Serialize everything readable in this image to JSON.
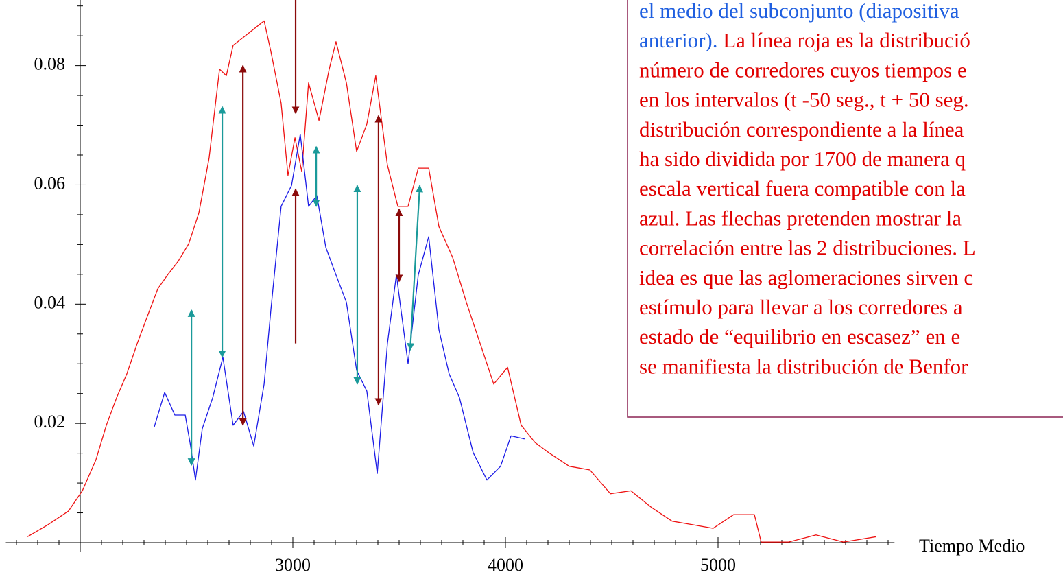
{
  "chart_data": {
    "type": "line",
    "xlabel": "Tiempo Medio",
    "xlim": [
      1650,
      5830
    ],
    "ylim": [
      0,
      0.091
    ],
    "axes_origin": [
      2000,
      0
    ],
    "xticks": [
      3000,
      4000,
      5000
    ],
    "x_minor_ticks": [
      1700,
      1800,
      1900,
      2000,
      2100,
      2200,
      2300,
      2400,
      2500,
      2600,
      2700,
      2800,
      2900,
      3100,
      3200,
      3300,
      3400,
      3500,
      3600,
      3700,
      3800,
      3900,
      4100,
      4200,
      4300,
      4400,
      4500,
      4600,
      4700,
      4800,
      4900,
      5100,
      5200,
      5300,
      5400,
      5500,
      5600,
      5700,
      5800
    ],
    "yticks": [
      0.02,
      0.04,
      0.06,
      0.08
    ],
    "y_minor_ticks": [
      0.005,
      0.01,
      0.015,
      0.025,
      0.03,
      0.035,
      0.045,
      0.05,
      0.055,
      0.065,
      0.07,
      0.075,
      0.085,
      0.09
    ],
    "series": [
      {
        "color": "#ee1111",
        "x": [
          1752,
          1848,
          1945,
          2010,
          2074,
          2123,
          2171,
          2219,
          2268,
          2316,
          2365,
          2413,
          2461,
          2510,
          2558,
          2606,
          2655,
          2687,
          2719,
          2784,
          2865,
          2897,
          2945,
          2977,
          3010,
          3042,
          3074,
          3123,
          3171,
          3203,
          3252,
          3300,
          3348,
          3390,
          3445,
          3494,
          3542,
          3590,
          3639,
          3687,
          3752,
          3816,
          3881,
          3945,
          4010,
          4074,
          4139,
          4203,
          4300,
          4397,
          4494,
          4590,
          4687,
          4784,
          4881,
          4977,
          5074,
          5171,
          5203,
          5332,
          5461,
          5590,
          5745
        ],
        "values": [
          0.001,
          0.003,
          0.0053,
          0.0087,
          0.0139,
          0.0197,
          0.0243,
          0.0283,
          0.0334,
          0.038,
          0.0426,
          0.045,
          0.0472,
          0.0501,
          0.0553,
          0.0645,
          0.0794,
          0.0783,
          0.0834,
          0.0852,
          0.0875,
          0.0823,
          0.0737,
          0.0616,
          0.0679,
          0.0622,
          0.0771,
          0.0708,
          0.0794,
          0.084,
          0.0771,
          0.0656,
          0.0702,
          0.0783,
          0.0633,
          0.0564,
          0.0564,
          0.0628,
          0.0628,
          0.053,
          0.0478,
          0.0403,
          0.0334,
          0.0266,
          0.0294,
          0.0197,
          0.0168,
          0.0151,
          0.0128,
          0.0122,
          0.0082,
          0.0087,
          0.0059,
          0.0036,
          0.003,
          0.0024,
          0.0047,
          0.0047,
          0.0001,
          0.0001,
          0.0013,
          0.0001,
          0.001
        ]
      },
      {
        "color": "#1a1ae6",
        "x": [
          2348,
          2397,
          2445,
          2494,
          2519,
          2542,
          2574,
          2623,
          2671,
          2719,
          2768,
          2816,
          2865,
          2897,
          2945,
          2994,
          3035,
          3074,
          3113,
          3155,
          3203,
          3252,
          3300,
          3348,
          3397,
          3445,
          3487,
          3542,
          3590,
          3639,
          3687,
          3735,
          3784,
          3848,
          3913,
          3977,
          4026,
          4090
        ],
        "values": [
          0.0194,
          0.0252,
          0.0214,
          0.0214,
          0.0162,
          0.0105,
          0.0191,
          0.0243,
          0.0311,
          0.0197,
          0.022,
          0.0162,
          0.0266,
          0.0392,
          0.0564,
          0.0599,
          0.0685,
          0.0564,
          0.0582,
          0.0495,
          0.0449,
          0.0403,
          0.0289,
          0.0254,
          0.0116,
          0.0334,
          0.0449,
          0.03,
          0.0449,
          0.0513,
          0.0357,
          0.0283,
          0.0243,
          0.0151,
          0.0105,
          0.0128,
          0.0179,
          0.0174
        ]
      }
    ],
    "arrows": [
      {
        "x1": 2523,
        "y1": 0.039,
        "x2": 2523,
        "y2": 0.013,
        "color": "#1a9a9a",
        "heads": "both"
      },
      {
        "x1": 2668,
        "y1": 0.0731,
        "x2": 2668,
        "y2": 0.0311,
        "color": "#1a9a9a",
        "heads": "both"
      },
      {
        "x1": 2765,
        "y1": 0.08,
        "x2": 2765,
        "y2": 0.0197,
        "color": "#8b0a0a",
        "heads": "both"
      },
      {
        "x1": 3013,
        "y1": 0.091,
        "x2": 3013,
        "y2": 0.072,
        "color": "#8b0a0a",
        "heads": "end"
      },
      {
        "x1": 3013,
        "y1": 0.0334,
        "x2": 3013,
        "y2": 0.0593,
        "color": "#8b0a0a",
        "heads": "end"
      },
      {
        "x1": 3110,
        "y1": 0.0664,
        "x2": 3110,
        "y2": 0.0564,
        "color": "#1a9a9a",
        "heads": "both"
      },
      {
        "x1": 3303,
        "y1": 0.0599,
        "x2": 3303,
        "y2": 0.0266,
        "color": "#1a9a9a",
        "heads": "both"
      },
      {
        "x1": 3403,
        "y1": 0.0716,
        "x2": 3403,
        "y2": 0.0231,
        "color": "#8b0a0a",
        "heads": "both"
      },
      {
        "x1": 3500,
        "y1": 0.0559,
        "x2": 3500,
        "y2": 0.0438,
        "color": "#8b0a0a",
        "heads": "both"
      },
      {
        "x1": 3552,
        "y1": 0.0323,
        "x2": 3597,
        "y2": 0.0599,
        "color": "#1a9a9a",
        "heads": "both"
      }
    ]
  },
  "text_box": {
    "border_color": "#8b2252",
    "lines": [
      [
        {
          "text": "el medio del subconjunto (diapositiva",
          "color": "#1f5fe0"
        }
      ],
      [
        {
          "text": "anterior).",
          "color": "#1f5fe0"
        },
        {
          "text": " La línea roja es la distribució",
          "color": "#e00000"
        }
      ],
      [
        {
          "text": "número de corredores cuyos tiempos e",
          "color": "#e00000"
        }
      ],
      [
        {
          "text": "en los intervalos (t -50 seg., t + 50 seg.",
          "color": "#e00000"
        }
      ],
      [
        {
          "text": "distribución correspondiente a la línea",
          "color": "#e00000"
        }
      ],
      [
        {
          "text": "ha sido dividida por 1700 de manera q",
          "color": "#e00000"
        }
      ],
      [
        {
          "text": "escala vertical fuera compatible con la",
          "color": "#e00000"
        }
      ],
      [
        {
          "text": "azul. Las flechas pretenden mostrar la",
          "color": "#e00000"
        }
      ],
      [
        {
          "text": "correlación entre las 2 distribuciones. L",
          "color": "#e00000"
        }
      ],
      [
        {
          "text": "idea es que las aglomeraciones sirven c",
          "color": "#e00000"
        }
      ],
      [
        {
          "text": "estímulo para llevar a los corredores a",
          "color": "#e00000"
        }
      ],
      [
        {
          "text": "estado de “equilibrio en escasez”  en e",
          "color": "#e00000"
        }
      ],
      [
        {
          "text": "se manifiesta la distribución de Benfor",
          "color": "#e00000"
        }
      ]
    ]
  }
}
